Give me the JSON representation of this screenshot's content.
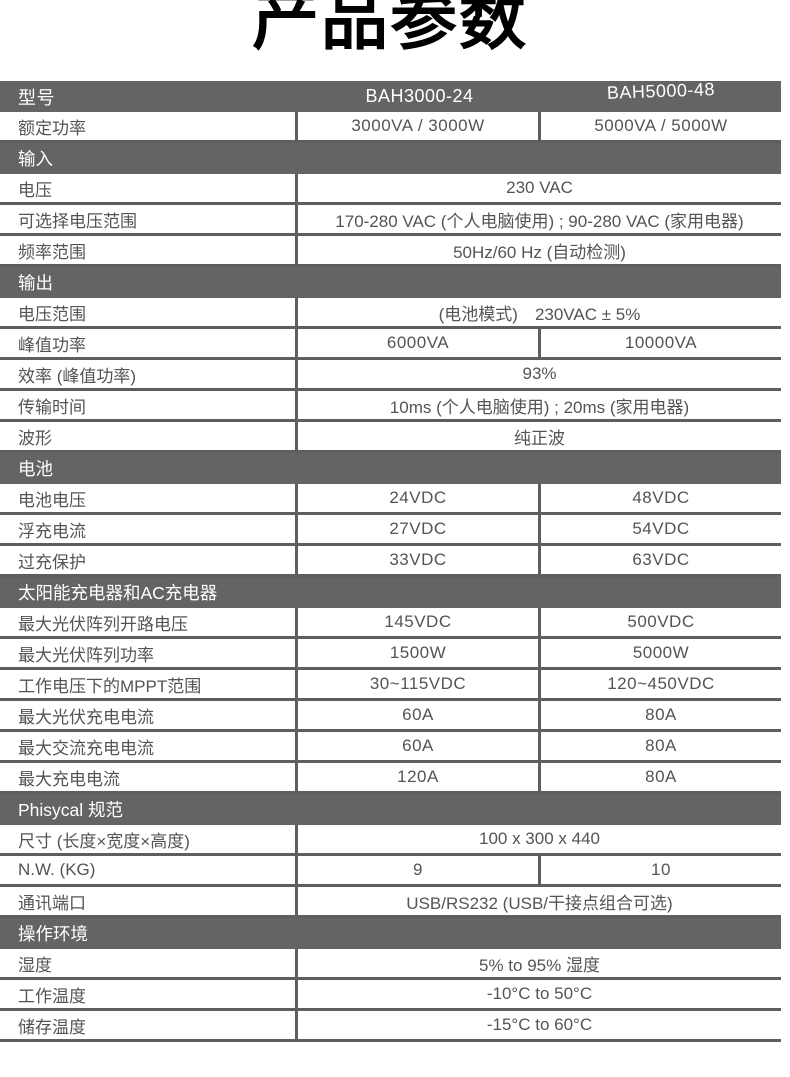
{
  "page": {
    "title": "产品参数"
  },
  "colors": {
    "section_bar": "#646464",
    "border": "#5e5e5e",
    "cell_text": "#545454",
    "bar_text": "#ffffff",
    "title_text": "#000000",
    "background": "#ffffff"
  },
  "table": {
    "rows": [
      {
        "type": "header",
        "label": "型号",
        "col1": "BAH3000-24",
        "col2": "BAH5000-48"
      },
      {
        "type": "row",
        "label": "额定功率",
        "col1": "3000VA / 3000W",
        "col2": "5000VA / 5000W"
      },
      {
        "type": "section",
        "label": "输入"
      },
      {
        "type": "row",
        "label": "电压",
        "span": "230 VAC"
      },
      {
        "type": "row",
        "label": "可选择电压范围",
        "span": "170-280 VAC (个人电脑使用) ; 90-280 VAC (家用电器)"
      },
      {
        "type": "row",
        "label": "频率范围",
        "span": "50Hz/60 Hz (自动检测)"
      },
      {
        "type": "section",
        "label": "输出"
      },
      {
        "type": "row",
        "label": "电压范围",
        "span": "(电池模式)　230VAC ± 5%"
      },
      {
        "type": "row",
        "label": "峰值功率",
        "col1": "6000VA",
        "col2": "10000VA"
      },
      {
        "type": "row",
        "label": "效率 (峰值功率)",
        "span": "93%"
      },
      {
        "type": "row",
        "label": "传输时间",
        "span": "10ms (个人电脑使用) ; 20ms (家用电器)"
      },
      {
        "type": "row",
        "label": "波形",
        "span": "纯正波"
      },
      {
        "type": "section",
        "label": "电池"
      },
      {
        "type": "row",
        "label": "电池电压",
        "col1": "24VDC",
        "col2": "48VDC"
      },
      {
        "type": "row",
        "label": "浮充电流",
        "col1": "27VDC",
        "col2": "54VDC"
      },
      {
        "type": "row",
        "label": "过充保护",
        "col1": "33VDC",
        "col2": "63VDC"
      },
      {
        "type": "section",
        "label": "太阳能充电器和AC充电器"
      },
      {
        "type": "row",
        "label": "最大光伏阵列开路电压",
        "col1": "145VDC",
        "col2": "500VDC"
      },
      {
        "type": "row",
        "label": "最大光伏阵列功率",
        "col1": "1500W",
        "col2": "5000W"
      },
      {
        "type": "row",
        "label": "工作电压下的MPPT范围",
        "col1": "30~115VDC",
        "col2": "120~450VDC"
      },
      {
        "type": "row",
        "label": "最大光伏充电电流",
        "col1": "60A",
        "col2": "80A"
      },
      {
        "type": "row",
        "label": "最大交流充电电流",
        "col1": "60A",
        "col2": "80A"
      },
      {
        "type": "row",
        "label": "最大充电电流",
        "col1": "120A",
        "col2": "80A"
      },
      {
        "type": "section",
        "label": "Phisycal 规范"
      },
      {
        "type": "row",
        "label": "尺寸 (长度×宽度×高度)",
        "span": "100 x 300 x 440"
      },
      {
        "type": "row",
        "label": "N.W. (KG)",
        "col1": "9",
        "col2": "10"
      },
      {
        "type": "row",
        "label": "通讯端口",
        "span": "USB/RS232 (USB/干接点组合可选)"
      },
      {
        "type": "section",
        "label": "操作环境"
      },
      {
        "type": "row",
        "label": "湿度",
        "span": "5% to 95% 湿度"
      },
      {
        "type": "row",
        "label": "工作温度",
        "span": "-10°C to 50°C"
      },
      {
        "type": "row",
        "label": "储存温度",
        "span": "-15°C to 60°C"
      }
    ]
  }
}
